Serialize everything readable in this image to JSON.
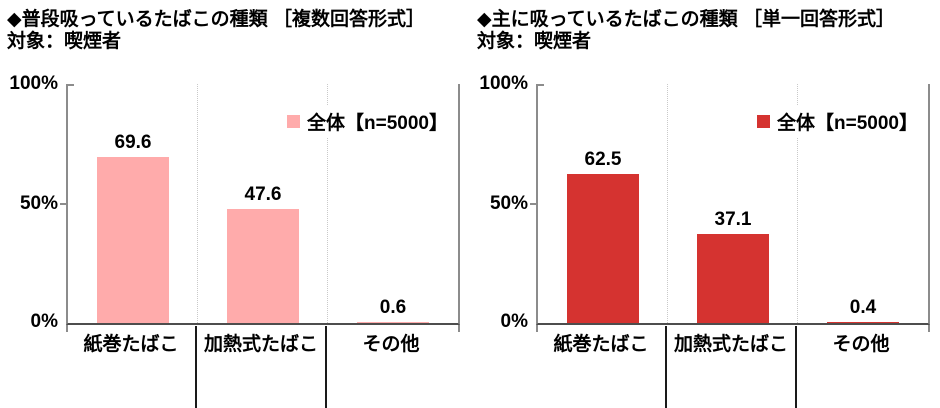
{
  "chart_data": [
    {
      "type": "bar",
      "title": "◆普段吸っているたばこの種類 ［複数回答形式］",
      "subtitle": "対象：喫煙者",
      "legend": [
        "全体【n=5000】"
      ],
      "legend_position": "top-right",
      "bar_color": "#FFABAB",
      "categories": [
        "紙巻たばこ",
        "加熱式たばこ",
        "その他"
      ],
      "values": [
        69.6,
        47.6,
        0.6
      ],
      "xlabel": "",
      "ylabel": "",
      "yticks": [
        "100%",
        "50%",
        "0%"
      ],
      "ylim": [
        0,
        100
      ],
      "grid": false
    },
    {
      "type": "bar",
      "title": "◆主に吸っているたばこの種類 ［単一回答形式］",
      "subtitle": "対象：喫煙者",
      "legend": [
        "全体【n=5000】"
      ],
      "legend_position": "top-right",
      "bar_color": "#D53330",
      "categories": [
        "紙巻たばこ",
        "加熱式たばこ",
        "その他"
      ],
      "values": [
        62.5,
        37.1,
        0.4
      ],
      "xlabel": "",
      "ylabel": "",
      "yticks": [
        "100%",
        "50%",
        "0%"
      ],
      "ylim": [
        0,
        100
      ],
      "grid": false
    }
  ]
}
